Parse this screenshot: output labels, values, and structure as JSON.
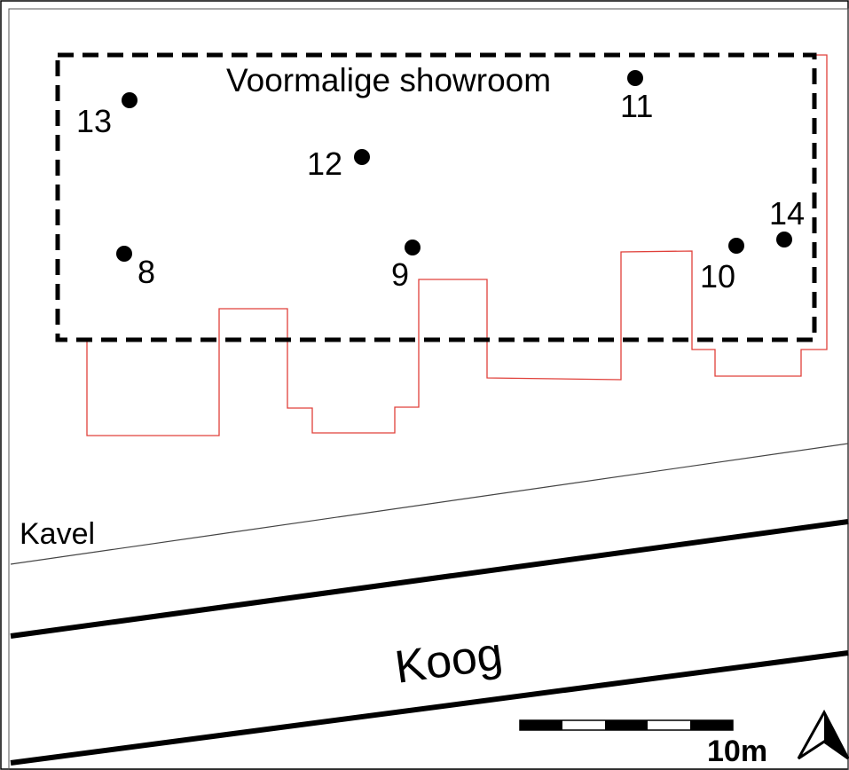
{
  "map": {
    "building_label": "Voormalige showroom",
    "plot_label": "Kavel",
    "street_label": "Koog",
    "scale_label": "10m",
    "north_arrow": "north-arrow-icon",
    "colors": {
      "outline": "#000000",
      "plot_line": "#444444",
      "excavation_outline": "#e0403a",
      "background": "#ffffff"
    }
  },
  "boreholes": [
    {
      "id": "borehole-8",
      "label": "8"
    },
    {
      "id": "borehole-9",
      "label": "9"
    },
    {
      "id": "borehole-10",
      "label": "10"
    },
    {
      "id": "borehole-11",
      "label": "11"
    },
    {
      "id": "borehole-12",
      "label": "12"
    },
    {
      "id": "borehole-13",
      "label": "13"
    },
    {
      "id": "borehole-14",
      "label": "14"
    }
  ]
}
